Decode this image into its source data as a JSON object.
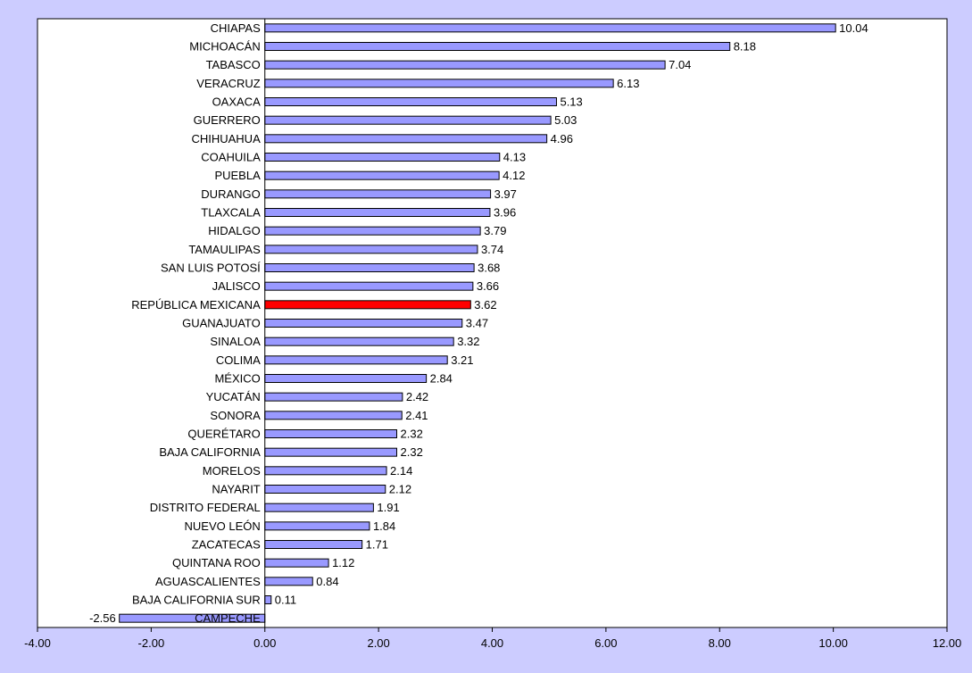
{
  "colors": {
    "background": "#ccccff",
    "plot_area": "#ffffff",
    "bar_fill": "#9999ff",
    "highlight_fill": "#ff0000",
    "bar_stroke": "#000000"
  },
  "chart_data": {
    "type": "bar",
    "orientation": "horizontal",
    "xlim": [
      -4,
      12
    ],
    "x_ticks": [
      "-4.00",
      "-2.00",
      "0.00",
      "2.00",
      "4.00",
      "6.00",
      "8.00",
      "10.00",
      "12.00"
    ],
    "x_tick_values": [
      -4,
      -2,
      0,
      2,
      4,
      6,
      8,
      10,
      12
    ],
    "grid": false,
    "legend": "none",
    "categories": [
      "CHIAPAS",
      "MICHOACÁN",
      "TABASCO",
      "VERACRUZ",
      "OAXACA",
      "GUERRERO",
      "CHIHUAHUA",
      "COAHUILA",
      "PUEBLA",
      "DURANGO",
      "TLAXCALA",
      "HIDALGO",
      "TAMAULIPAS",
      "SAN LUIS POTOSÍ",
      "JALISCO",
      "REPÚBLICA MEXICANA",
      "GUANAJUATO",
      "SINALOA",
      "COLIMA",
      "MÉXICO",
      "YUCATÁN",
      "SONORA",
      "QUERÉTARO",
      "BAJA CALIFORNIA",
      "MORELOS",
      "NAYARIT",
      "DISTRITO FEDERAL",
      "NUEVO LEÓN",
      "ZACATECAS",
      "QUINTANA ROO",
      "AGUASCALIENTES",
      "BAJA CALIFORNIA SUR",
      "CAMPECHE"
    ],
    "values": [
      10.04,
      8.18,
      7.04,
      6.13,
      5.13,
      5.03,
      4.96,
      4.13,
      4.12,
      3.97,
      3.96,
      3.79,
      3.74,
      3.68,
      3.66,
      3.62,
      3.47,
      3.32,
      3.21,
      2.84,
      2.42,
      2.41,
      2.32,
      2.32,
      2.14,
      2.12,
      1.91,
      1.84,
      1.71,
      1.12,
      0.84,
      0.11,
      -2.56
    ],
    "value_labels": [
      "10.04",
      "8.18",
      "7.04",
      "6.13",
      "5.13",
      "5.03",
      "4.96",
      "4.13",
      "4.12",
      "3.97",
      "3.96",
      "3.79",
      "3.74",
      "3.68",
      "3.66",
      "3.62",
      "3.47",
      "3.32",
      "3.21",
      "2.84",
      "2.42",
      "2.41",
      "2.32",
      "2.32",
      "2.14",
      "2.12",
      "1.91",
      "1.84",
      "1.71",
      "1.12",
      "0.84",
      "0.11",
      "-2.56"
    ],
    "highlighted_category": "REPÚBLICA MEXICANA"
  }
}
